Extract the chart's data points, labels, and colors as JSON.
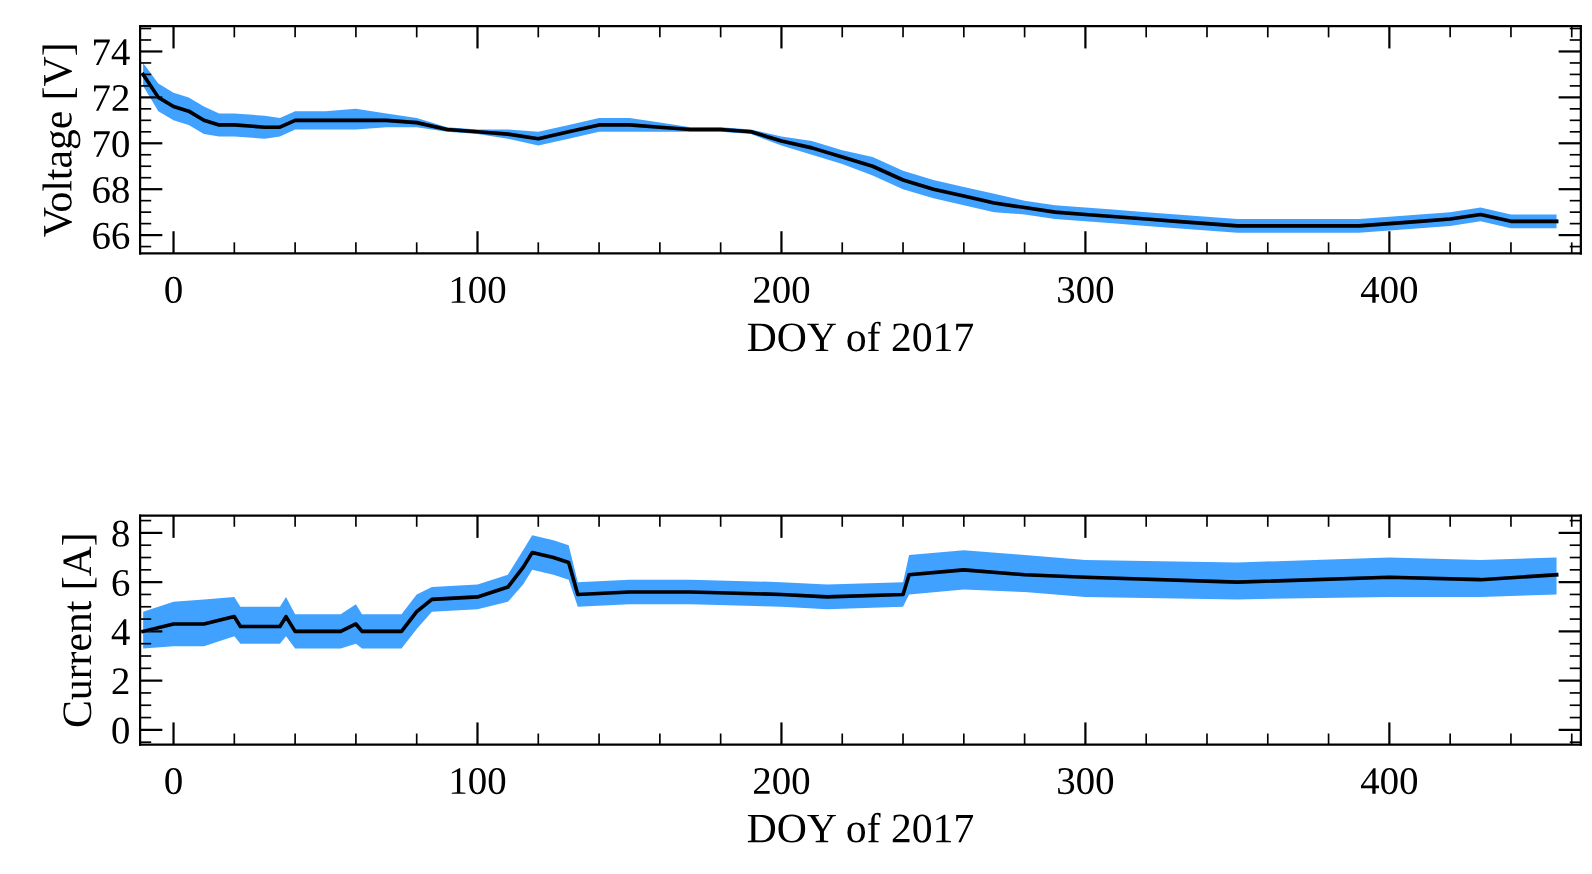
{
  "chart_data": [
    {
      "type": "line",
      "xlabel": "DOY of 2017",
      "ylabel": "Voltage [V]",
      "xlim": [
        -11,
        463
      ],
      "xticks": [
        0,
        100,
        200,
        300,
        400
      ],
      "ylim": [
        65.2,
        75.1
      ],
      "yticks": [
        66,
        68,
        70,
        72,
        74
      ],
      "grid": false,
      "legend": false,
      "marker": "none",
      "line_style": "solid",
      "series": [
        {
          "color": "#000000",
          "x": [
            -10,
            -5,
            0,
            5,
            10,
            15,
            20,
            30,
            35,
            40,
            50,
            60,
            70,
            80,
            90,
            100,
            110,
            120,
            130,
            140,
            150,
            160,
            170,
            180,
            190,
            200,
            210,
            220,
            230,
            240,
            250,
            260,
            270,
            280,
            290,
            300,
            310,
            320,
            330,
            340,
            350,
            360,
            370,
            380,
            390,
            400,
            410,
            420,
            430,
            440,
            450,
            455
          ],
          "values": [
            73.0,
            72.0,
            71.6,
            71.4,
            71.0,
            70.8,
            70.8,
            70.7,
            70.7,
            71.0,
            71.0,
            71.0,
            71.0,
            70.9,
            70.6,
            70.5,
            70.4,
            70.2,
            70.5,
            70.8,
            70.8,
            70.7,
            70.6,
            70.6,
            70.5,
            70.1,
            69.8,
            69.4,
            69.0,
            68.4,
            68.0,
            67.7,
            67.4,
            67.2,
            67.0,
            66.9,
            66.8,
            66.7,
            66.6,
            66.5,
            66.4,
            66.4,
            66.4,
            66.4,
            66.4,
            66.5,
            66.6,
            66.7,
            66.9,
            66.6,
            66.6,
            66.6
          ]
        },
        {
          "color": "#1e90ff",
          "x": [
            -10,
            -5,
            0,
            5,
            10,
            15,
            20,
            30,
            35,
            40,
            50,
            60,
            70,
            80,
            90,
            100,
            110,
            120,
            130,
            140,
            150,
            160,
            170,
            180,
            190,
            200,
            210,
            220,
            230,
            240,
            250,
            260,
            270,
            280,
            290,
            300,
            310,
            320,
            330,
            340,
            350,
            360,
            370,
            380,
            390,
            400,
            410,
            420,
            430,
            440,
            450,
            455
          ],
          "values": [
            73.0,
            72.0,
            71.6,
            71.4,
            71.0,
            70.8,
            70.8,
            70.7,
            70.7,
            71.0,
            71.0,
            71.0,
            71.0,
            70.9,
            70.6,
            70.5,
            70.4,
            70.2,
            70.5,
            70.8,
            70.8,
            70.7,
            70.6,
            70.6,
            70.5,
            70.1,
            69.8,
            69.4,
            69.0,
            68.4,
            68.0,
            67.7,
            67.4,
            67.2,
            67.0,
            66.9,
            66.8,
            66.7,
            66.6,
            66.5,
            66.4,
            66.4,
            66.4,
            66.4,
            66.4,
            66.5,
            66.6,
            66.7,
            66.9,
            66.6,
            66.6,
            66.6
          ],
          "lower": [
            72.5,
            71.4,
            71.0,
            70.8,
            70.4,
            70.3,
            70.3,
            70.2,
            70.3,
            70.6,
            70.6,
            70.6,
            70.7,
            70.7,
            70.5,
            70.4,
            70.2,
            69.9,
            70.2,
            70.5,
            70.5,
            70.5,
            70.5,
            70.5,
            70.4,
            69.9,
            69.5,
            69.1,
            68.6,
            68.0,
            67.6,
            67.3,
            67.0,
            66.9,
            66.7,
            66.6,
            66.5,
            66.4,
            66.3,
            66.2,
            66.1,
            66.1,
            66.1,
            66.1,
            66.1,
            66.2,
            66.3,
            66.4,
            66.6,
            66.3,
            66.3,
            66.3
          ],
          "upper": [
            73.5,
            72.6,
            72.2,
            72.0,
            71.6,
            71.3,
            71.3,
            71.2,
            71.1,
            71.4,
            71.4,
            71.5,
            71.3,
            71.1,
            70.7,
            70.6,
            70.6,
            70.5,
            70.8,
            71.1,
            71.1,
            70.9,
            70.7,
            70.7,
            70.6,
            70.3,
            70.1,
            69.7,
            69.4,
            68.8,
            68.4,
            68.1,
            67.8,
            67.5,
            67.3,
            67.2,
            67.1,
            67.0,
            66.9,
            66.8,
            66.7,
            66.7,
            66.7,
            66.7,
            66.7,
            66.8,
            66.9,
            67.0,
            67.2,
            66.9,
            66.9,
            66.9
          ]
        }
      ]
    },
    {
      "type": "line",
      "xlabel": "DOY of 2017",
      "ylabel": "Current [A]",
      "xlim": [
        -11,
        463
      ],
      "xticks": [
        0,
        100,
        200,
        300,
        400
      ],
      "ylim": [
        -0.6,
        8.7
      ],
      "yticks": [
        0,
        2,
        4,
        6,
        8
      ],
      "grid": false,
      "legend": false,
      "marker": "none",
      "line_style": "solid",
      "series": [
        {
          "color": "#000000",
          "x": [
            -10,
            0,
            10,
            20,
            22,
            35,
            37,
            40,
            55,
            60,
            62,
            75,
            80,
            85,
            100,
            110,
            115,
            118,
            125,
            130,
            133,
            150,
            170,
            200,
            215,
            240,
            242,
            260,
            280,
            300,
            350,
            400,
            430,
            455
          ],
          "values": [
            4.0,
            4.3,
            4.3,
            4.6,
            4.2,
            4.2,
            4.6,
            4.0,
            4.0,
            4.3,
            4.0,
            4.0,
            4.8,
            5.3,
            5.4,
            5.8,
            6.6,
            7.2,
            7.0,
            6.8,
            5.5,
            5.6,
            5.6,
            5.5,
            5.4,
            5.5,
            6.3,
            6.5,
            6.3,
            6.2,
            6.0,
            6.2,
            6.1,
            6.3
          ]
        },
        {
          "color": "#1e90ff",
          "x": [
            -10,
            0,
            10,
            20,
            22,
            35,
            37,
            40,
            55,
            60,
            62,
            75,
            80,
            85,
            100,
            110,
            115,
            118,
            125,
            130,
            133,
            150,
            170,
            200,
            215,
            240,
            242,
            260,
            280,
            300,
            350,
            400,
            430,
            455
          ],
          "values": [
            4.0,
            4.3,
            4.3,
            4.6,
            4.2,
            4.2,
            4.6,
            4.0,
            4.0,
            4.3,
            4.0,
            4.0,
            4.8,
            5.3,
            5.4,
            5.8,
            6.6,
            7.2,
            7.0,
            6.8,
            5.5,
            5.6,
            5.6,
            5.5,
            5.4,
            5.5,
            6.3,
            6.5,
            6.3,
            6.2,
            6.0,
            6.2,
            6.1,
            6.3
          ],
          "lower": [
            3.3,
            3.4,
            3.4,
            3.8,
            3.5,
            3.5,
            3.8,
            3.3,
            3.3,
            3.5,
            3.3,
            3.3,
            4.1,
            4.8,
            4.9,
            5.2,
            5.9,
            6.5,
            6.3,
            6.1,
            5.0,
            5.1,
            5.1,
            5.0,
            4.9,
            5.0,
            5.5,
            5.7,
            5.6,
            5.4,
            5.3,
            5.4,
            5.4,
            5.5
          ],
          "upper": [
            4.8,
            5.2,
            5.3,
            5.4,
            5.0,
            5.0,
            5.4,
            4.7,
            4.7,
            5.1,
            4.7,
            4.7,
            5.5,
            5.8,
            5.9,
            6.3,
            7.3,
            7.9,
            7.7,
            7.5,
            6.0,
            6.1,
            6.1,
            6.0,
            5.9,
            6.0,
            7.1,
            7.3,
            7.1,
            6.9,
            6.8,
            7.0,
            6.9,
            7.0
          ]
        }
      ]
    }
  ]
}
